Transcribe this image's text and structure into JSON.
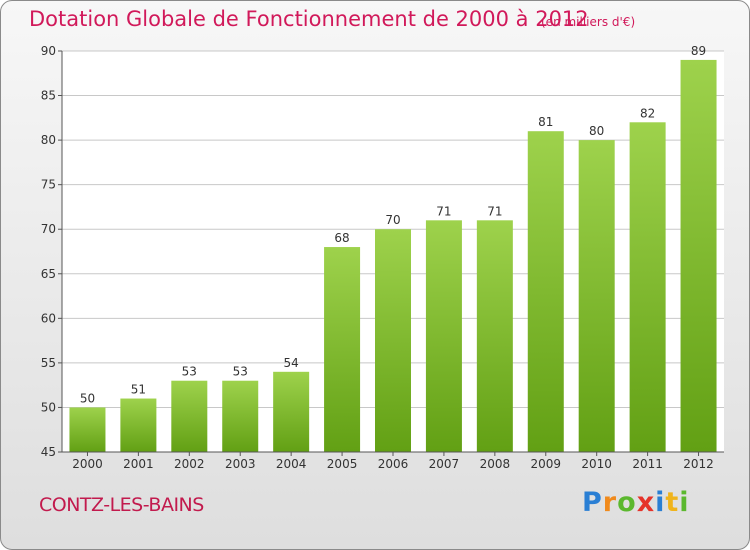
{
  "header": {
    "title": "Dotation Globale de Fonctionnement de 2000 à 2012",
    "unit": "(en milliers d'€)"
  },
  "footer": {
    "commune": "CONTZ-LES-BAINS",
    "logo": "Proxiti"
  },
  "colors": {
    "title": "#d1195a",
    "bar_light": "#9ed24c",
    "bar_dark": "#62a014",
    "grid": "#c8c8c8"
  },
  "chart_data": {
    "type": "bar",
    "title": "Dotation Globale de Fonctionnement de 2000 à 2012",
    "subtitle": "(en milliers d'€)",
    "xlabel": "",
    "ylabel": "",
    "categories": [
      "2000",
      "2001",
      "2002",
      "2003",
      "2004",
      "2005",
      "2006",
      "2007",
      "2008",
      "2009",
      "2010",
      "2011",
      "2012"
    ],
    "values": [
      50,
      51,
      53,
      53,
      54,
      68,
      70,
      71,
      71,
      81,
      80,
      82,
      89
    ],
    "ylim": [
      45,
      90
    ],
    "yticks": [
      45,
      50,
      55,
      60,
      65,
      70,
      75,
      80,
      85,
      90
    ],
    "grid": true,
    "legend": "none"
  }
}
